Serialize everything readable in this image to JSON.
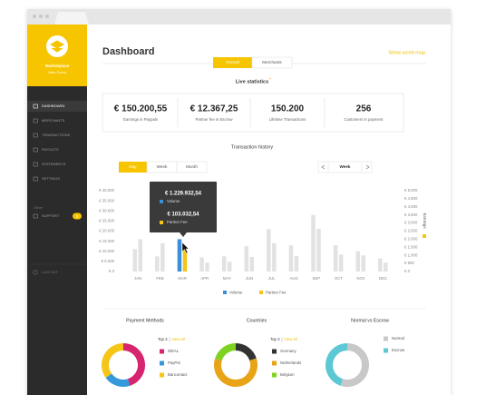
{
  "sidebar": {
    "brand": "Marketplace",
    "user": "John Cenro",
    "menu": [
      "DASHBOARD",
      "MERCHANTS",
      "TRANSACTIONS",
      "PAYOUTS",
      "STATEMENTS",
      "SETTINGS"
    ],
    "other_heading": "Other",
    "support": "SUPPORT",
    "support_badge": "3",
    "logout": "LOG OUT"
  },
  "header": {
    "title": "Dashboard",
    "link": "Show world map",
    "tabs": [
      "Overall",
      "Merchants"
    ]
  },
  "live": {
    "title": "Live statistics",
    "mark": "*",
    "stats": [
      {
        "value": "€ 150.200,55",
        "caption": "Earnings in Paypals"
      },
      {
        "value": "€ 12.367,25",
        "caption": "Partner fee in Escrow"
      },
      {
        "value": "150.200",
        "caption": "Lifetime Transactions"
      },
      {
        "value": "256",
        "caption": "Customers in payment"
      }
    ]
  },
  "history": {
    "title": "Transaction history",
    "periods": [
      "Day",
      "Week",
      "Month"
    ],
    "selector": "Week"
  },
  "chart_data": [
    {
      "type": "bar",
      "categories": [
        "JAN",
        "FEB",
        "MAR",
        "APR",
        "MAY",
        "JUN",
        "JUL",
        "AUG",
        "SEP",
        "OCT",
        "NOV",
        "DEC"
      ],
      "series": [
        {
          "name": "Volume",
          "color": "#3a8fd9",
          "values": [
            11000,
            7500,
            16000,
            7000,
            7500,
            12500,
            21000,
            13000,
            28000,
            13000,
            10000,
            6500
          ]
        },
        {
          "name": "Partner Fee",
          "color": "#f5c518",
          "axis": "y2",
          "values": [
            2000,
            1750,
            1500,
            550,
            600,
            900,
            1750,
            950,
            2650,
            1050,
            1000,
            550
          ]
        }
      ],
      "ylim": [
        0,
        40000
      ],
      "yticks": [
        {
          "value": 40000,
          "label": "€ 40.000"
        },
        {
          "value": 35000,
          "label": "€ 35.000"
        },
        {
          "value": 30000,
          "label": "€ 30.000"
        },
        {
          "value": 25000,
          "label": "€ 25.000"
        },
        {
          "value": 20000,
          "label": "€ 20.000"
        },
        {
          "value": 15000,
          "label": "€ 15.000"
        },
        {
          "value": 10000,
          "label": "€ 10.000"
        },
        {
          "value": 5000,
          "label": "€ 5.000"
        },
        {
          "value": 0,
          "label": "€ 0"
        }
      ],
      "y2lim": [
        0,
        5000
      ],
      "y2ticks": [
        {
          "value": 5000,
          "label": "€ 5.000"
        },
        {
          "value": 4500,
          "label": "€ 4.500"
        },
        {
          "value": 4000,
          "label": "€ 4.000"
        },
        {
          "value": 3500,
          "label": "€ 3.500"
        },
        {
          "value": 3000,
          "label": "€ 3.000"
        },
        {
          "value": 2500,
          "label": "€ 2.500"
        },
        {
          "value": 2000,
          "label": "€ 2.000"
        },
        {
          "value": 1500,
          "label": "€ 1.500"
        },
        {
          "value": 1000,
          "label": "€ 1.000"
        },
        {
          "value": 500,
          "label": "€ 500"
        },
        {
          "value": 0,
          "label": "€ 0"
        }
      ],
      "y2label": "Earnings",
      "inactive_color": "#e2e2e2",
      "active_index": 2,
      "tooltip": {
        "values": [
          "€ 1.229.932,54",
          "€ 103.032,54"
        ]
      }
    },
    {
      "type": "pie",
      "donut": true,
      "title": "Payment Methods",
      "top_label": "Top 3",
      "view_all": "View all",
      "categories": [
        "iDEAL",
        "PayPal",
        "Bancontact"
      ],
      "values": [
        45,
        20,
        35
      ],
      "colors": [
        "#d6246e",
        "#3498db",
        "#f5c518"
      ]
    },
    {
      "type": "pie",
      "donut": true,
      "title": "Countries",
      "top_label": "Top 3",
      "view_all": "View all",
      "categories": [
        "Germany",
        "Netherlands",
        "Belgium"
      ],
      "values": [
        20,
        60,
        20
      ],
      "colors": [
        "#333333",
        "#e8a317",
        "#7ed321"
      ]
    },
    {
      "type": "pie",
      "donut": true,
      "title": "Normal vs Escrow",
      "categories": [
        "Normal",
        "Escrow"
      ],
      "values": [
        55,
        45
      ],
      "colors": [
        "#c8c8c8",
        "#5bc8d4"
      ]
    }
  ]
}
